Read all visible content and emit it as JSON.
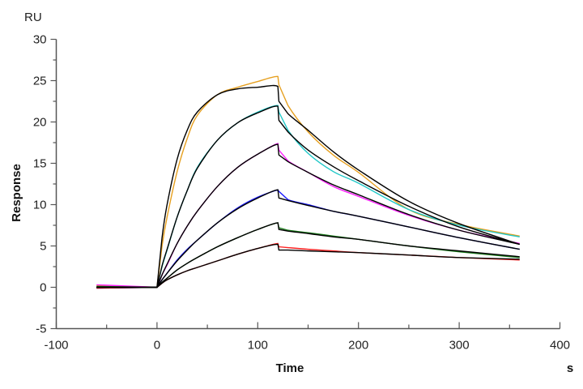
{
  "chart_data": {
    "type": "line",
    "title": "",
    "xlabel": "Time",
    "xunit": "s",
    "ylabel": "Response",
    "yunit": "RU",
    "xlim": [
      -100,
      400
    ],
    "ylim": [
      -5,
      30
    ],
    "xticks": [
      "-100",
      "0",
      "100",
      "200",
      "300",
      "400"
    ],
    "yticks": [
      "-5",
      "0",
      "5",
      "10",
      "15",
      "20",
      "25",
      "30"
    ],
    "grid": false,
    "fit_color": "#000000",
    "x": [
      -60,
      0,
      5,
      10,
      20,
      30,
      40,
      60,
      80,
      100,
      120,
      121,
      130,
      150,
      175,
      200,
      250,
      300,
      360
    ],
    "series": [
      {
        "color": "#e6a020",
        "values": [
          0.2,
          0,
          5,
          8.5,
          14,
          18,
          20.8,
          23.3,
          24.2,
          24.9,
          25.5,
          24.5,
          22,
          18.8,
          16,
          13.9,
          9.4,
          7.6,
          6.2
        ],
        "fit": [
          0,
          0,
          6,
          10,
          15.5,
          19,
          21.2,
          23.3,
          24,
          24.2,
          24.3,
          22.5,
          21,
          19,
          16.4,
          14.2,
          10.4,
          7.7,
          5.2
        ]
      },
      {
        "color": "#20c8c8",
        "values": [
          0,
          0,
          2.5,
          4.5,
          8.5,
          11.7,
          14.5,
          17.8,
          19.9,
          21.2,
          22,
          21.2,
          19,
          16.2,
          14,
          12.6,
          9.4,
          7.5,
          6.1
        ],
        "fit": [
          0,
          0,
          2.6,
          4.6,
          8.5,
          11.7,
          14.4,
          17.8,
          19.9,
          21.1,
          21.9,
          20.2,
          18.8,
          16.6,
          14.6,
          12.9,
          9.8,
          7.3,
          5.2
        ]
      },
      {
        "color": "#ff20ff",
        "values": [
          0.3,
          0,
          1.5,
          2.7,
          5.3,
          7.4,
          9.2,
          12.2,
          14.5,
          16.1,
          17.4,
          16.6,
          15.3,
          13.9,
          12.2,
          11,
          8.7,
          6.9,
          5.3
        ],
        "fit": [
          0,
          0,
          1.5,
          2.8,
          5.3,
          7.4,
          9.2,
          12.2,
          14.5,
          16.1,
          17.3,
          16,
          15.2,
          13.9,
          12.4,
          11.2,
          8.8,
          6.9,
          5.2
        ]
      },
      {
        "color": "#1a1aff",
        "values": [
          -0.1,
          0,
          0.9,
          1.7,
          3.3,
          4.6,
          5.7,
          7.8,
          9.6,
          10.9,
          11.8,
          11.6,
          10.6,
          10,
          9.2,
          8.6,
          7.3,
          6,
          4.6
        ],
        "fit": [
          0,
          0,
          0.9,
          1.7,
          3.2,
          4.5,
          5.7,
          7.8,
          9.5,
          10.8,
          11.8,
          10.8,
          10.5,
          9.9,
          9.2,
          8.6,
          7.3,
          6,
          4.6
        ]
      },
      {
        "color": "#1a7a1a",
        "values": [
          0.1,
          0,
          0.6,
          1.1,
          2.1,
          2.9,
          3.6,
          4.9,
          6,
          7,
          7.8,
          7.2,
          6.9,
          6.6,
          6.2,
          5.8,
          5,
          4.3,
          3.6
        ],
        "fit": [
          0,
          0,
          0.6,
          1.1,
          2.1,
          2.9,
          3.6,
          4.9,
          6,
          7,
          7.8,
          7,
          6.8,
          6.5,
          6.1,
          5.8,
          5,
          4.4,
          3.7
        ]
      },
      {
        "color": "#ff2020",
        "values": [
          -0.1,
          0,
          0.5,
          0.9,
          1.5,
          2,
          2.4,
          3.2,
          4,
          4.7,
          5.3,
          4.9,
          4.8,
          4.6,
          4.4,
          4.2,
          3.9,
          3.6,
          3.3
        ],
        "fit": [
          0,
          0,
          0.5,
          0.9,
          1.5,
          2,
          2.4,
          3.2,
          4,
          4.7,
          5.2,
          4.5,
          4.5,
          4.4,
          4.3,
          4.2,
          3.9,
          3.6,
          3.4
        ]
      }
    ]
  }
}
